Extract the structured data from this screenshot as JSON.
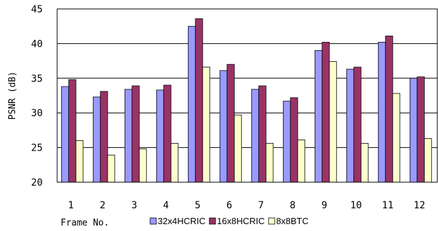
{
  "chart_data": {
    "type": "bar",
    "xlabel": "Frame No.",
    "ylabel": "PSNR (dB)",
    "ylim": [
      20,
      45
    ],
    "yticks": [
      20,
      25,
      30,
      35,
      40,
      45
    ],
    "grid": true,
    "legend_position": "bottom",
    "categories": [
      "1",
      "2",
      "3",
      "4",
      "5",
      "6",
      "7",
      "8",
      "9",
      "10",
      "11",
      "12"
    ],
    "series": [
      {
        "name": "32x4HCRIC",
        "color": "#9999ff",
        "values": [
          33.8,
          32.3,
          33.4,
          33.3,
          42.5,
          36.1,
          33.4,
          31.7,
          39.0,
          36.3,
          40.2,
          35.0
        ]
      },
      {
        "name": "16x8HCRIC",
        "color": "#993366",
        "values": [
          34.8,
          33.1,
          33.9,
          34.0,
          43.6,
          37.0,
          33.9,
          32.2,
          40.2,
          36.6,
          41.1,
          35.2
        ]
      },
      {
        "name": "8x8BTC",
        "color": "#ffffcc",
        "values": [
          26.0,
          23.9,
          24.8,
          25.6,
          36.6,
          29.7,
          25.6,
          26.1,
          37.4,
          25.6,
          32.8,
          26.3
        ]
      }
    ]
  }
}
